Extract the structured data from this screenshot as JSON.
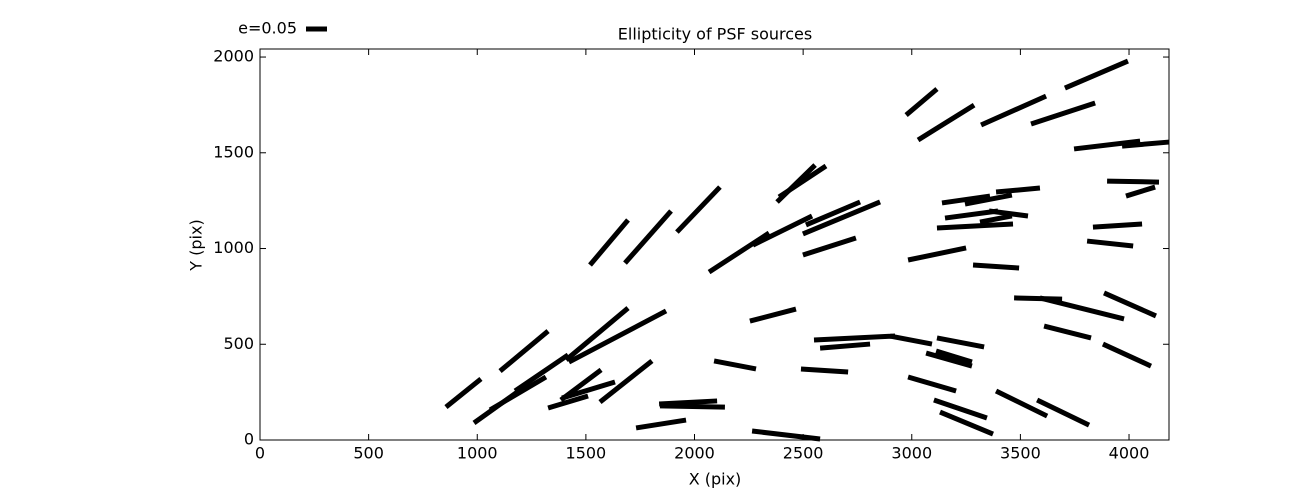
{
  "chart_data": {
    "type": "whisker",
    "title": "Ellipticity of PSF sources",
    "x_label": "X (pix)",
    "y_label": "Y (pix)",
    "legend_label": "e=0.05",
    "color": "#000000",
    "xlim": [
      0,
      4184
    ],
    "ylim": [
      0,
      2042
    ],
    "xticks": [
      0,
      500,
      1000,
      1500,
      2000,
      2500,
      3000,
      3500,
      4000
    ],
    "yticks": [
      0,
      500,
      1000,
      1500,
      2000
    ],
    "segments": {
      "x0": [
        856,
        985,
        1059,
        1105,
        1174,
        1326,
        1385,
        1409,
        1390,
        1422,
        1519,
        1565,
        1680,
        1731,
        1837,
        1841,
        1919,
        2067,
        2090,
        2255,
        2265,
        2269,
        2380,
        2389,
        2490,
        2499,
        2499,
        2513,
        2550,
        2578,
        2900,
        2974,
        2983,
        2983,
        3029,
        3066,
        3102,
        3116,
        3112,
        3130,
        3153,
        3139,
        3116,
        3245,
        3314,
        3282,
        3356,
        3388,
        3319,
        3388,
        3471,
        3549,
        3577,
        3590,
        3609,
        3705,
        3747,
        3807,
        3834,
        3880,
        3885,
        3899,
        3968,
        3986
      ],
      "y0": [
        172,
        89,
        157,
        360,
        256,
        167,
        209,
        418,
        219,
        407,
        914,
        198,
        924,
        63,
        188,
        178,
        1086,
        877,
        413,
        621,
        47,
        1018,
        1243,
        1269,
        371,
        1076,
        966,
        1123,
        522,
        480,
        543,
        1697,
        940,
        329,
        1567,
        454,
        209,
        533,
        465,
        146,
        1159,
        1238,
        1107,
        1232,
        1138,
        914,
        1196,
        256,
        1645,
        1295,
        742,
        1650,
        209,
        742,
        595,
        1838,
        1520,
        1039,
        1112,
        501,
        768,
        1352,
        1535,
        1274
      ],
      "x1": [
        1017,
        1229,
        1316,
        1326,
        1418,
        1510,
        1570,
        1694,
        1634,
        1869,
        1694,
        1804,
        1892,
        1961,
        2104,
        2140,
        2117,
        2343,
        2283,
        2467,
        2578,
        2541,
        2555,
        2605,
        2707,
        2854,
        2743,
        2762,
        2923,
        2808,
        3093,
        3116,
        3250,
        3204,
        3287,
        3277,
        3346,
        3333,
        3277,
        3374,
        3397,
        3360,
        3466,
        3461,
        3461,
        3494,
        3535,
        3623,
        3618,
        3590,
        3692,
        3844,
        3816,
        3977,
        3825,
        3995,
        4051,
        4019,
        4060,
        4101,
        4124,
        4138,
        4184,
        4120
      ],
      "y1": [
        319,
        287,
        329,
        569,
        444,
        230,
        366,
        689,
        303,
        674,
        1149,
        413,
        1196,
        104,
        204,
        172,
        1321,
        1081,
        371,
        684,
        5,
        1170,
        1436,
        1431,
        355,
        1243,
        1055,
        1243,
        543,
        501,
        501,
        1833,
        1003,
        256,
        1749,
        386,
        115,
        486,
        407,
        31,
        1196,
        1274,
        1128,
        1279,
        1170,
        898,
        1170,
        125,
        1796,
        1316,
        736,
        1760,
        78,
        632,
        533,
        1979,
        1561,
        1013,
        1128,
        386,
        648,
        1347,
        1556,
        1321
      ]
    }
  }
}
